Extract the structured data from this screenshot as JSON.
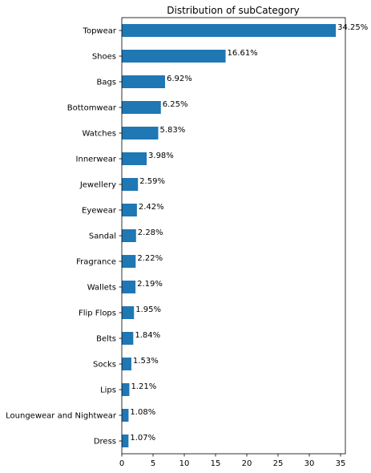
{
  "chart_data": {
    "type": "bar",
    "orientation": "horizontal",
    "title": "Distribution of subCategory",
    "xlabel": "",
    "ylabel": "",
    "xlim": [
      0,
      36
    ],
    "xticks": [
      0,
      5,
      10,
      15,
      20,
      25,
      30,
      35
    ],
    "grid": false,
    "legend": "none",
    "bar_color": "#1f77b4",
    "categories": [
      "Topwear",
      "Shoes",
      "Bags",
      "Bottomwear",
      "Watches",
      "Innerwear",
      "Jewellery",
      "Eyewear",
      "Sandal",
      "Fragrance",
      "Wallets",
      "Flip Flops",
      "Belts",
      "Socks",
      "Lips",
      "Loungewear and Nightwear",
      "Dress"
    ],
    "values": [
      34.25,
      16.61,
      6.92,
      6.25,
      5.83,
      3.98,
      2.59,
      2.42,
      2.28,
      2.22,
      2.19,
      1.95,
      1.84,
      1.53,
      1.21,
      1.08,
      1.07
    ],
    "data_labels": [
      "34.25%",
      "16.61%",
      "6.92%",
      "6.25%",
      "5.83%",
      "3.98%",
      "2.59%",
      "2.42%",
      "2.28%",
      "2.22%",
      "2.19%",
      "1.95%",
      "1.84%",
      "1.53%",
      "1.21%",
      "1.08%",
      "1.07%"
    ]
  }
}
